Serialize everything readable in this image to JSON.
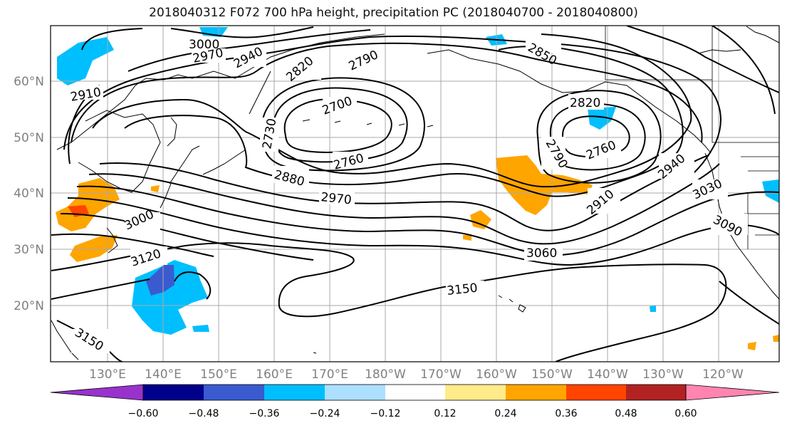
{
  "title": "2018040312 F072 700 hPa height, precipitation PC (2018040700 - 2018040800)",
  "lat_labels": [
    "60°N",
    "50°N",
    "40°N",
    "30°N",
    "20°N"
  ],
  "lon_labels": [
    "130°E",
    "140°E",
    "150°E",
    "160°E",
    "170°E",
    "180°W",
    "170°W",
    "160°W",
    "150°W",
    "140°W",
    "130°W",
    "120°W"
  ],
  "colorbar": {
    "colors": [
      "#9932CC",
      "#00008B",
      "#3A5BD0",
      "#00BFFF",
      "#ADDFFF",
      "#FFFFFF",
      "#FFEB8A",
      "#FFA500",
      "#FF4500",
      "#B22222",
      "#FF85B0"
    ],
    "ticks": [
      "−0.60",
      "−0.48",
      "−0.36",
      "−0.24",
      "−0.12",
      "0.12",
      "0.24",
      "0.36",
      "0.48",
      "0.60"
    ]
  },
  "contour_labels": [
    "3000",
    "2970",
    "2940",
    "2910",
    "2820",
    "2790",
    "2850",
    "2700",
    "2730",
    "2760",
    "2820",
    "2790",
    "2760",
    "2880",
    "2970",
    "2940",
    "2910",
    "3030",
    "3090",
    "3000",
    "3120",
    "3060",
    "3150",
    "3150"
  ]
}
